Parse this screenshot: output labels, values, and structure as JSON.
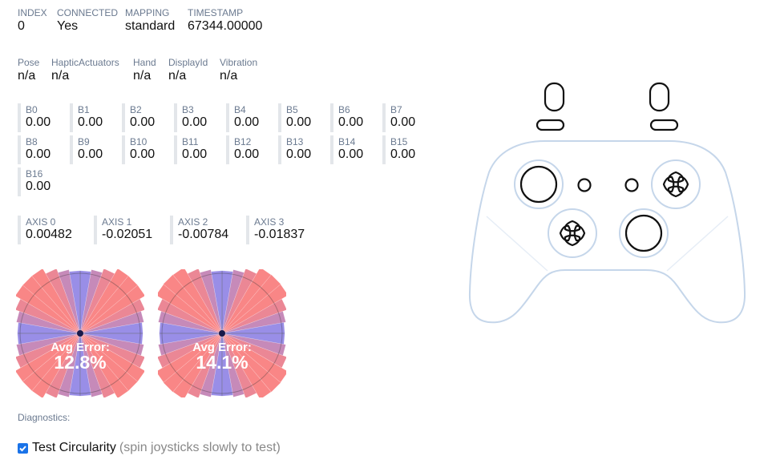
{
  "info": [
    {
      "label": "INDEX",
      "value": "0"
    },
    {
      "label": "CONNECTED",
      "value": "Yes"
    },
    {
      "label": "MAPPING",
      "value": "standard"
    },
    {
      "label": "TIMESTAMP",
      "value": "67344.00000"
    }
  ],
  "extras": [
    {
      "label": "Pose",
      "value": "n/a"
    },
    {
      "label": "HapticActuators",
      "value": "n/a"
    },
    {
      "label": "Hand",
      "value": "n/a"
    },
    {
      "label": "DisplayId",
      "value": "n/a"
    },
    {
      "label": "Vibration",
      "value": "n/a"
    }
  ],
  "buttons": [
    {
      "label": "B0",
      "value": "0.00"
    },
    {
      "label": "B1",
      "value": "0.00"
    },
    {
      "label": "B2",
      "value": "0.00"
    },
    {
      "label": "B3",
      "value": "0.00"
    },
    {
      "label": "B4",
      "value": "0.00"
    },
    {
      "label": "B5",
      "value": "0.00"
    },
    {
      "label": "B6",
      "value": "0.00"
    },
    {
      "label": "B7",
      "value": "0.00"
    },
    {
      "label": "B8",
      "value": "0.00"
    },
    {
      "label": "B9",
      "value": "0.00"
    },
    {
      "label": "B10",
      "value": "0.00"
    },
    {
      "label": "B11",
      "value": "0.00"
    },
    {
      "label": "B12",
      "value": "0.00"
    },
    {
      "label": "B13",
      "value": "0.00"
    },
    {
      "label": "B14",
      "value": "0.00"
    },
    {
      "label": "B15",
      "value": "0.00"
    },
    {
      "label": "B16",
      "value": "0.00"
    }
  ],
  "axes": [
    {
      "label": "AXIS 0",
      "value": "0.00482"
    },
    {
      "label": "AXIS 1",
      "value": "-0.02051"
    },
    {
      "label": "AXIS 2",
      "value": "-0.00784"
    },
    {
      "label": "AXIS 3",
      "value": "-0.01837"
    }
  ],
  "circularity": [
    {
      "stick": "left",
      "avg_label": "Avg Error:",
      "avg_value": "12.8%"
    },
    {
      "stick": "right",
      "avg_label": "Avg Error:",
      "avg_value": "14.1%"
    }
  ],
  "colors": {
    "low_error": "#6b7cff",
    "high_error": "#f87171",
    "controller_outline": "#c5d6ea"
  },
  "diagnostics_label": "Diagnostics:",
  "test_circularity": {
    "checked": true,
    "label": "Test Circularity",
    "hint": "(spin joysticks slowly to test)"
  }
}
